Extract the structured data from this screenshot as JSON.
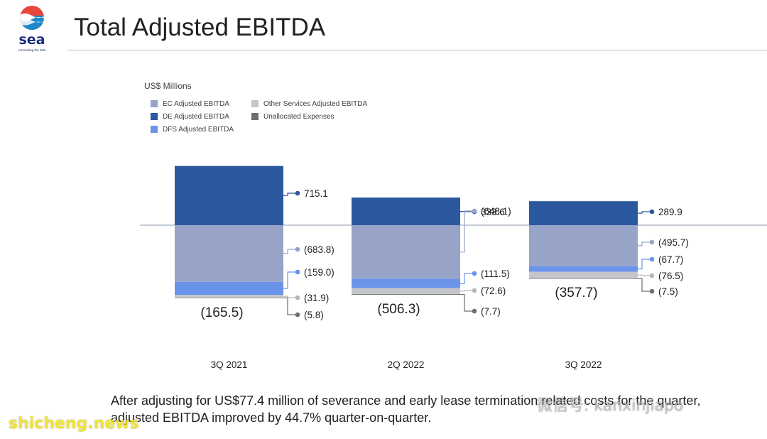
{
  "brand": {
    "logo_word": "sea",
    "logo_tagline": "connecting the dots"
  },
  "page": {
    "title": "Total Adjusted EBITDA"
  },
  "chart_data": {
    "type": "bar",
    "stacked": true,
    "unit_label": "US$ Millions",
    "categories": [
      "3Q 2021",
      "2Q 2022",
      "3Q 2022"
    ],
    "series": [
      {
        "name": "EC Adjusted EBITDA",
        "color": "#97a4c8",
        "values": [
          -683.8,
          -648.1,
          -495.7
        ],
        "labels": [
          "(683.8)",
          "(648.1)",
          "(495.7)"
        ]
      },
      {
        "name": "DE Adjusted EBITDA",
        "color": "#2c58a0",
        "values": [
          715.1,
          333.6,
          289.9
        ],
        "labels": [
          "715.1",
          "333.6",
          "289.9"
        ]
      },
      {
        "name": "DFS Adjusted EBITDA",
        "color": "#6a93ea",
        "values": [
          -159.0,
          -111.5,
          -67.7
        ],
        "labels": [
          "(159.0)",
          "(111.5)",
          "(67.7)"
        ]
      },
      {
        "name": "Other Services Adjusted EBITDA",
        "color": "#c4c6c9",
        "values": [
          -31.9,
          -72.6,
          -76.5
        ],
        "labels": [
          "(31.9)",
          "(72.6)",
          "(76.5)"
        ]
      },
      {
        "name": "Unallocated Expenses",
        "color": "#6f6f70",
        "values": [
          -5.8,
          -7.7,
          -7.5
        ],
        "labels": [
          "(5.8)",
          "(7.7)",
          "(7.5)"
        ]
      }
    ],
    "totals": [
      -165.5,
      -506.3,
      -357.7
    ],
    "total_labels": [
      "(165.5)",
      "(506.3)",
      "(357.7)"
    ],
    "legend_placement": "top-left",
    "grid": false
  },
  "footnote": "After adjusting for US$77.4 million of severance and early lease termination related costs for the quarter, adjusted EBITDA improved by 44.7% quarter-on-quarter.",
  "watermarks": {
    "left": "shicheng.news",
    "right": "微信号: kanxinjiapo"
  }
}
